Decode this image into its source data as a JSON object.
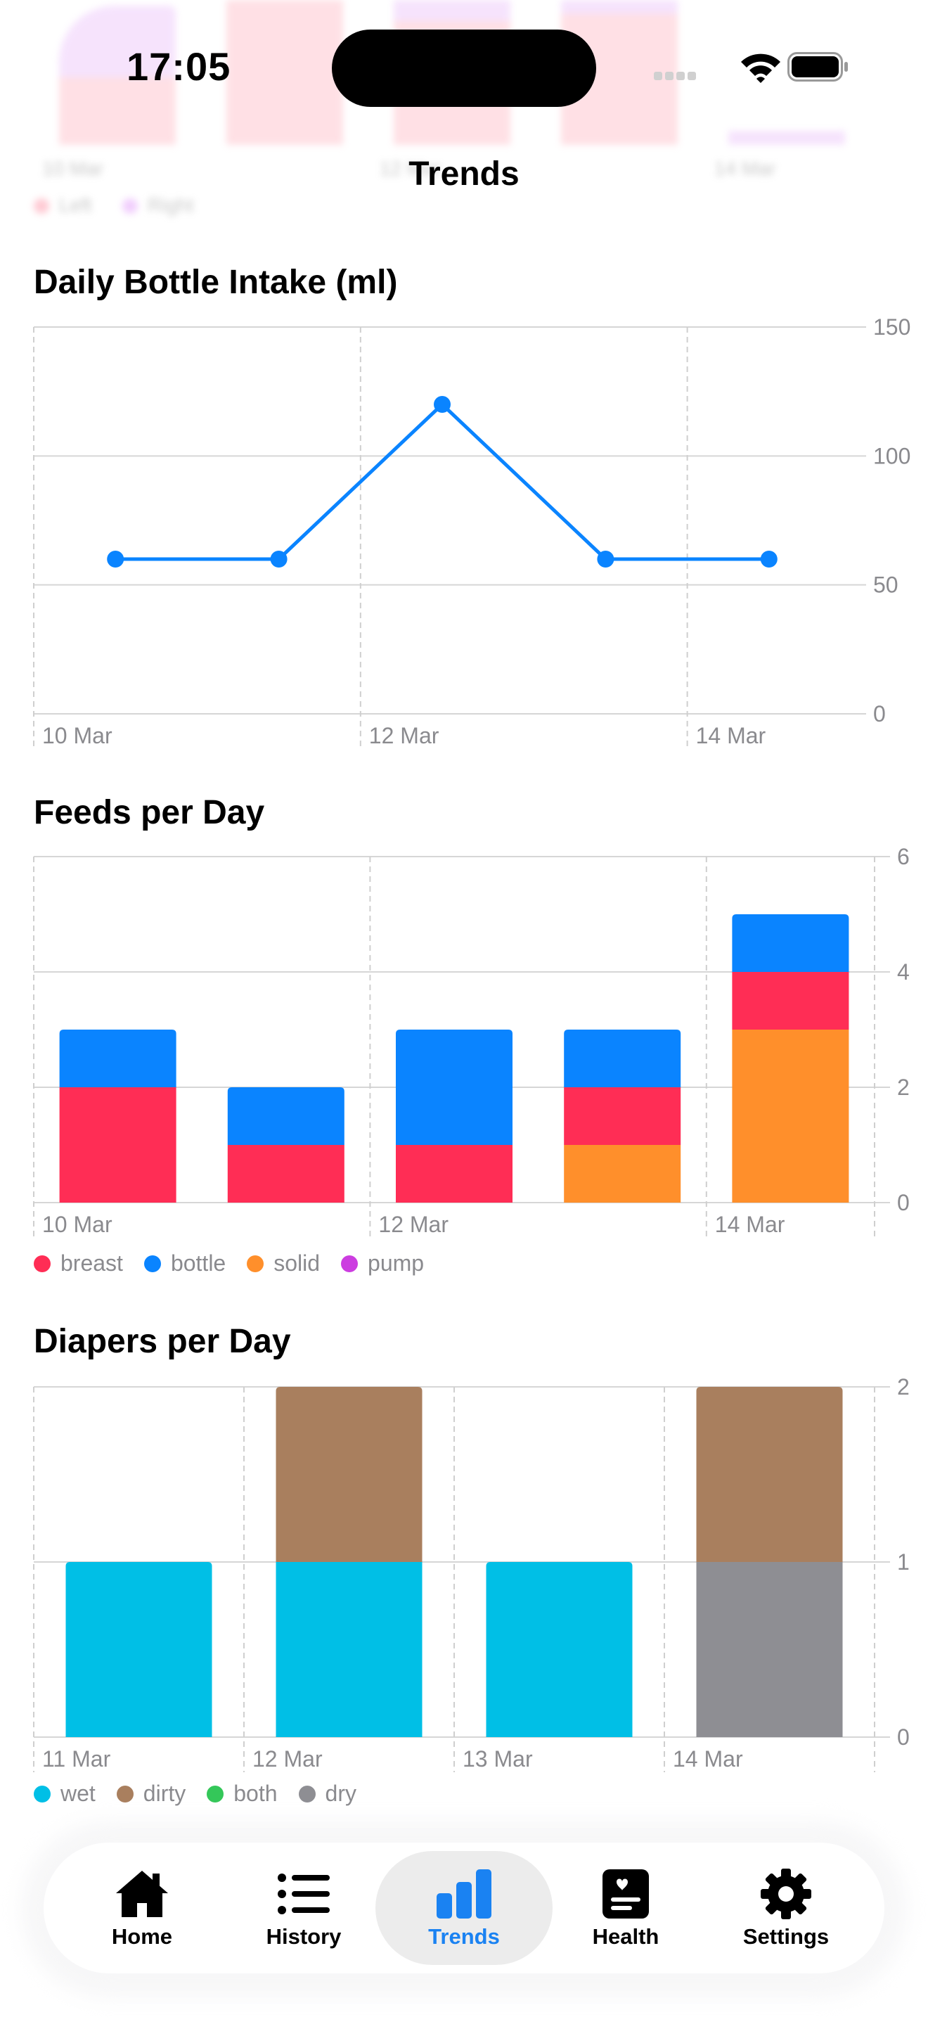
{
  "status_bar": {
    "time": "17:05"
  },
  "nav": {
    "title": "Trends"
  },
  "ghost_chart": {
    "tick_labels": [
      "10 Mar",
      "12 Mar",
      "14 Mar"
    ],
    "legend": [
      {
        "label": "Left",
        "color": "#ff9fb0"
      },
      {
        "label": "Right",
        "color": "#e6a7fb"
      }
    ]
  },
  "bottle_chart": {
    "title": "Daily Bottle Intake (ml)"
  },
  "feeds_chart": {
    "title": "Feeds per Day",
    "legend": [
      {
        "label": "breast",
        "color": "#ff2d55"
      },
      {
        "label": "bottle",
        "color": "#0a84ff"
      },
      {
        "label": "solid",
        "color": "#ff8f2b"
      },
      {
        "label": "pump",
        "color": "#cc3de0"
      }
    ]
  },
  "diapers_chart": {
    "title": "Diapers per Day",
    "legend": [
      {
        "label": "wet",
        "color": "#00bfe6"
      },
      {
        "label": "dirty",
        "color": "#a97f5e"
      },
      {
        "label": "both",
        "color": "#34c759"
      },
      {
        "label": "dry",
        "color": "#8e8e93"
      }
    ]
  },
  "chart_data": [
    {
      "type": "line",
      "title": "Daily Bottle Intake (ml)",
      "x": [
        "10 Mar",
        "11 Mar",
        "12 Mar",
        "13 Mar",
        "14 Mar"
      ],
      "x_tick_labels": [
        "10 Mar",
        "12 Mar",
        "14 Mar"
      ],
      "series": [
        {
          "values": [
            60,
            60,
            120,
            60,
            60
          ],
          "color": "#0a84ff"
        }
      ],
      "ylim": [
        0,
        150
      ],
      "y_ticks": [
        0,
        50,
        100,
        150
      ],
      "y_axis_side": "right",
      "grid": true
    },
    {
      "type": "bar",
      "stacked": true,
      "title": "Feeds per Day",
      "categories": [
        "10 Mar",
        "11 Mar",
        "12 Mar",
        "13 Mar",
        "14 Mar"
      ],
      "x_tick_labels": [
        "10 Mar",
        "12 Mar",
        "14 Mar"
      ],
      "series": [
        {
          "name": "breast",
          "values": [
            2,
            1,
            1,
            1,
            1
          ],
          "color": "#ff2d55"
        },
        {
          "name": "bottle",
          "values": [
            1,
            1,
            2,
            1,
            1
          ],
          "color": "#0a84ff"
        },
        {
          "name": "solid",
          "values": [
            0,
            0,
            0,
            1,
            3
          ],
          "color": "#ff8f2b"
        },
        {
          "name": "pump",
          "values": [
            0,
            0,
            0,
            0,
            0
          ],
          "color": "#cc3de0"
        }
      ],
      "stack_order": [
        "solid",
        "breast",
        "bottle",
        "pump"
      ],
      "ylim": [
        0,
        6
      ],
      "y_ticks": [
        0,
        2,
        4,
        6
      ],
      "y_axis_side": "right",
      "grid": true,
      "legend_position": "bottom-left"
    },
    {
      "type": "bar",
      "stacked": true,
      "title": "Diapers per Day",
      "categories": [
        "11 Mar",
        "12 Mar",
        "13 Mar",
        "14 Mar"
      ],
      "series": [
        {
          "name": "wet",
          "values": [
            1,
            1,
            1,
            0
          ],
          "color": "#00bfe6"
        },
        {
          "name": "dirty",
          "values": [
            0,
            1,
            0,
            1
          ],
          "color": "#a97f5e"
        },
        {
          "name": "both",
          "values": [
            0,
            0,
            0,
            0
          ],
          "color": "#34c759"
        },
        {
          "name": "dry",
          "values": [
            0,
            0,
            0,
            1
          ],
          "color": "#8e8e93"
        }
      ],
      "stack_order": [
        "wet",
        "dry",
        "both",
        "dirty"
      ],
      "ylim": [
        0,
        2
      ],
      "y_ticks": [
        0,
        1,
        2
      ],
      "y_axis_side": "right",
      "grid": true,
      "legend_position": "bottom-left"
    }
  ],
  "tabbar": {
    "tabs": [
      {
        "label": "Home",
        "icon": "house-icon",
        "active": false
      },
      {
        "label": "History",
        "icon": "list-icon",
        "active": false
      },
      {
        "label": "Trends",
        "icon": "bar-chart-icon",
        "active": true
      },
      {
        "label": "Health",
        "icon": "health-record-icon",
        "active": false
      },
      {
        "label": "Settings",
        "icon": "gear-icon",
        "active": false
      }
    ]
  }
}
